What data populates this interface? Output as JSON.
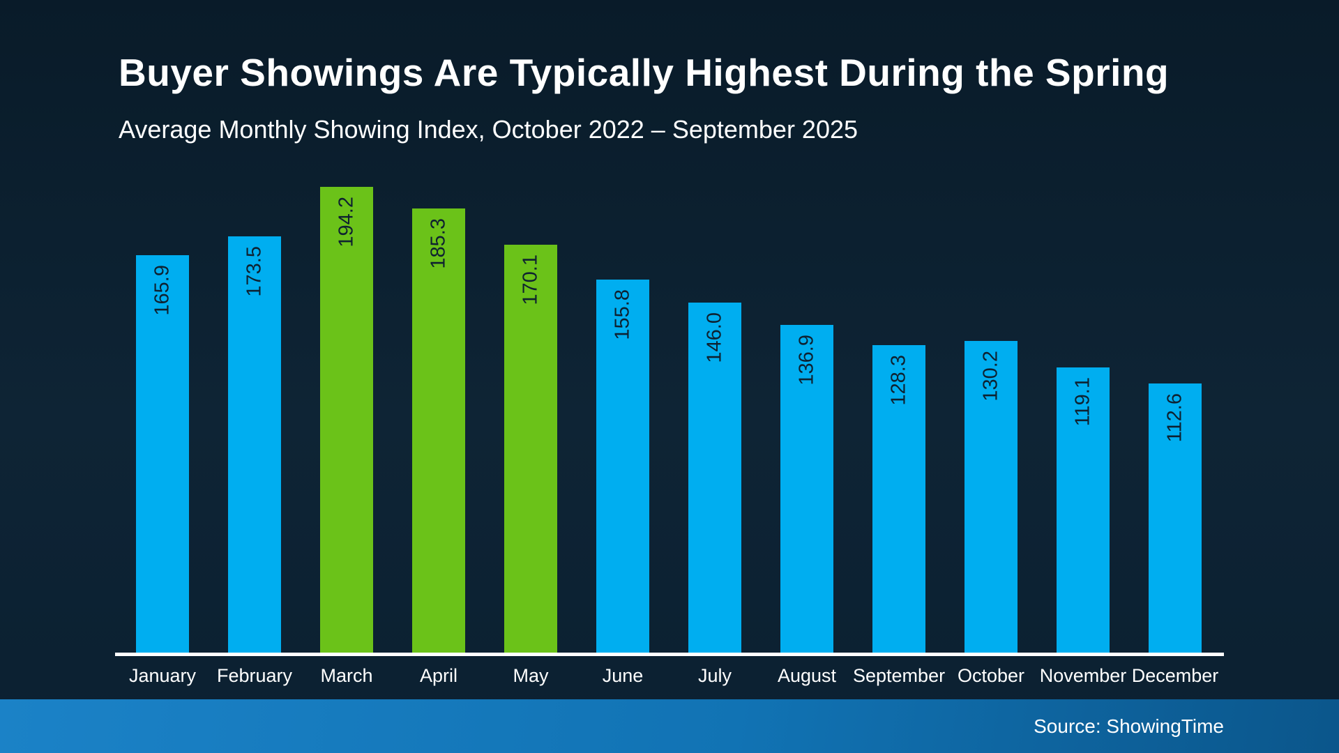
{
  "header": {
    "title": "Buyer Showings Are Typically Highest During the Spring",
    "subtitle": "Average Monthly Showing Index, October 2022 – September 2025"
  },
  "footer": {
    "source_label": "Source: ShowingTime"
  },
  "colors": {
    "background_top": "#091B29",
    "background_mid": "#0E2435",
    "bar_blue": "#00AEF0",
    "bar_green": "#6BC219",
    "value_label": "#0E2130",
    "axis_line": "#FFFFFF",
    "text": "#FFFFFF",
    "footer_gradient_left": "#1B82C7",
    "footer_gradient_right": "#0B568B"
  },
  "chart_data": {
    "type": "bar",
    "title": "Buyer Showings Are Typically Highest During the Spring",
    "subtitle": "Average Monthly Showing Index, October 2022 – September 2025",
    "xlabel": "",
    "ylabel": "",
    "ylim": [
      0,
      200
    ],
    "grid": false,
    "legend": "none",
    "value_label_style": "rotated 90deg, inside top of bar, dark text",
    "highlighted_categories": [
      "March",
      "April",
      "May"
    ],
    "source": "Source: ShowingTime",
    "categories": [
      "January",
      "February",
      "March",
      "April",
      "May",
      "June",
      "July",
      "August",
      "September",
      "October",
      "November",
      "December"
    ],
    "values": [
      165.9,
      173.5,
      194.2,
      185.3,
      170.1,
      155.8,
      146.0,
      136.9,
      128.3,
      130.2,
      119.1,
      112.6
    ],
    "points": [
      {
        "month": "January",
        "value": 165.9,
        "label": "165.9",
        "highlighted": false
      },
      {
        "month": "February",
        "value": 173.5,
        "label": "173.5",
        "highlighted": false
      },
      {
        "month": "March",
        "value": 194.2,
        "label": "194.2",
        "highlighted": true
      },
      {
        "month": "April",
        "value": 185.3,
        "label": "185.3",
        "highlighted": true
      },
      {
        "month": "May",
        "value": 170.1,
        "label": "170.1",
        "highlighted": true
      },
      {
        "month": "June",
        "value": 155.8,
        "label": "155.8",
        "highlighted": false
      },
      {
        "month": "July",
        "value": 146.0,
        "label": "146.0",
        "highlighted": false
      },
      {
        "month": "August",
        "value": 136.9,
        "label": "136.9",
        "highlighted": false
      },
      {
        "month": "September",
        "value": 128.3,
        "label": "128.3",
        "highlighted": false
      },
      {
        "month": "October",
        "value": 130.2,
        "label": "130.2",
        "highlighted": false
      },
      {
        "month": "November",
        "value": 119.1,
        "label": "119.1",
        "highlighted": false
      },
      {
        "month": "December",
        "value": 112.6,
        "label": "112.6",
        "highlighted": false
      }
    ]
  }
}
